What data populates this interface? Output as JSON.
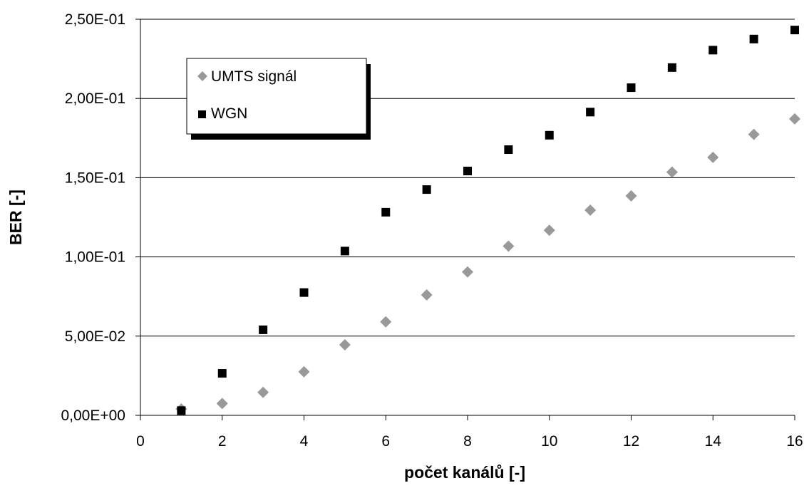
{
  "chart_data": {
    "type": "scatter",
    "xlabel": "počet kanálů [-]",
    "ylabel": "BER [-]",
    "xlim": [
      0,
      16
    ],
    "ylim": [
      0,
      0.25
    ],
    "x_ticks": [
      0,
      2,
      4,
      6,
      8,
      10,
      12,
      14,
      16
    ],
    "x_tick_labels": [
      "0",
      "2",
      "4",
      "6",
      "8",
      "10",
      "12",
      "14",
      "16"
    ],
    "y_ticks": [
      0,
      0.05,
      0.1,
      0.15,
      0.2,
      0.25
    ],
    "y_tick_labels": [
      "0,00E+00",
      "5,00E-02",
      "1,00E-01",
      "1,50E-01",
      "2,00E-01",
      "2,50E-01"
    ],
    "grid": "horizontal",
    "legend": "top-left",
    "series": [
      {
        "name": "UMTS signál",
        "marker": "diamond",
        "color": "#999999",
        "x": [
          1,
          2,
          3,
          4,
          5,
          6,
          7,
          8,
          9,
          10,
          11,
          12,
          13,
          14,
          15,
          16
        ],
        "y": [
          0.004,
          0.0075,
          0.0145,
          0.0275,
          0.0445,
          0.059,
          0.076,
          0.0905,
          0.1068,
          0.1168,
          0.1295,
          0.1385,
          0.1535,
          0.1628,
          0.1773,
          0.1871
        ]
      },
      {
        "name": "WGN",
        "marker": "square",
        "color": "#000000",
        "x": [
          1,
          2,
          3,
          4,
          5,
          6,
          7,
          8,
          9,
          10,
          11,
          12,
          13,
          14,
          15,
          16
        ],
        "y": [
          0.003,
          0.0265,
          0.054,
          0.0775,
          0.1037,
          0.1282,
          0.1425,
          0.1542,
          0.1677,
          0.1768,
          0.1914,
          0.2068,
          0.2195,
          0.2305,
          0.2375,
          0.2432
        ]
      }
    ]
  }
}
